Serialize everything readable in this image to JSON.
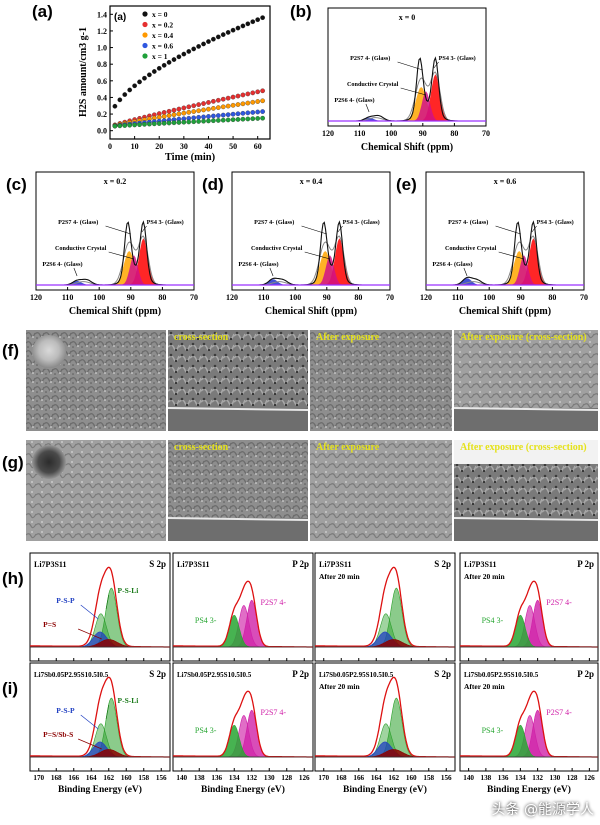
{
  "panels": {
    "a": "(a)",
    "a_inner": "(a)",
    "b": "(b)",
    "c": "(c)",
    "d": "(d)",
    "e": "(e)",
    "f": "(f)",
    "g": "(g)",
    "h": "(h)",
    "i": "(i)"
  },
  "chart_data": [
    {
      "id": "a",
      "type": "scatter",
      "title": "",
      "xlabel": "Time (min)",
      "ylabel": "H2S amount/cm3 g-1",
      "xlim": [
        0,
        65
      ],
      "ylim": [
        -0.1,
        1.5
      ],
      "xticks": [
        "0",
        "10",
        "20",
        "30",
        "40",
        "50",
        "60"
      ],
      "yticks": [
        "0.0",
        "0.2",
        "0.4",
        "0.6",
        "0.8",
        "1.0",
        "1.2",
        "1.4"
      ],
      "series": [
        {
          "name": "x = 0",
          "color": "#111111",
          "end": 1.36
        },
        {
          "name": "x = 0.2",
          "color": "#e53030",
          "end": 0.48
        },
        {
          "name": "x = 0.4",
          "color": "#ff9900",
          "end": 0.36
        },
        {
          "name": "x = 0.6",
          "color": "#2f57e0",
          "end": 0.23
        },
        {
          "name": "x = 1",
          "color": "#1fa03a",
          "end": 0.15
        }
      ]
    },
    {
      "id": "nmr",
      "type": "line",
      "xlabel": "Chemical Shift (ppm)",
      "xlim": [
        120,
        70
      ],
      "xticks": [
        "120",
        "110",
        "100",
        "90",
        "80",
        "70"
      ],
      "panels": [
        {
          "title": "x = 0",
          "tiny": 1.0
        },
        {
          "title": "x = 0.2",
          "tiny": 1.2
        },
        {
          "title": "x = 0.4",
          "tiny": 1.7
        },
        {
          "title": "x = 0.6",
          "tiny": 2.0
        }
      ],
      "labels": {
        "p2s7": "P2S7 4- (Glass)",
        "ps4": "PS4 3- (Glass)",
        "cc": "Conductive Crystal",
        "p2s6": "P2S6 4- (Glass)"
      }
    },
    {
      "id": "xps",
      "type": "line",
      "xlabel": "Binding Energy (eV)",
      "s2p_ticks": [
        "170",
        "168",
        "166",
        "164",
        "162",
        "160",
        "158",
        "156"
      ],
      "p2p_ticks": [
        "140",
        "138",
        "136",
        "134",
        "132",
        "130",
        "128",
        "126"
      ],
      "s2p_ticks_i_left": [
        "170",
        "168",
        "166",
        "164",
        "162",
        "160",
        "158",
        "156"
      ],
      "s2p_ticks_i_mid": [
        "170",
        "168",
        "166",
        "164",
        "162",
        "160",
        "158",
        "156"
      ]
    }
  ],
  "sem": {
    "f": [
      "",
      "cross-section",
      "After exposure",
      "After exposure (cross-section)"
    ],
    "g": [
      "",
      "cross-section",
      "After exposure",
      "After exposure (cross-section)"
    ]
  },
  "xps_text": {
    "h_comp": "Li7P3S11",
    "i_comp": "Li7Sb0.05P2.95S10.5I0.5",
    "after": "After 20 min",
    "s2p": "S 2p",
    "p2p": "P 2p",
    "pstr": "P-S-P",
    "psli": "P-S-Li",
    "pds": "P=S",
    "pdssbs": "P=S/Sb-S",
    "ps4": "PS4 3-",
    "p2s7": "P2S7 4-"
  },
  "watermark": "头条 @能源学人"
}
